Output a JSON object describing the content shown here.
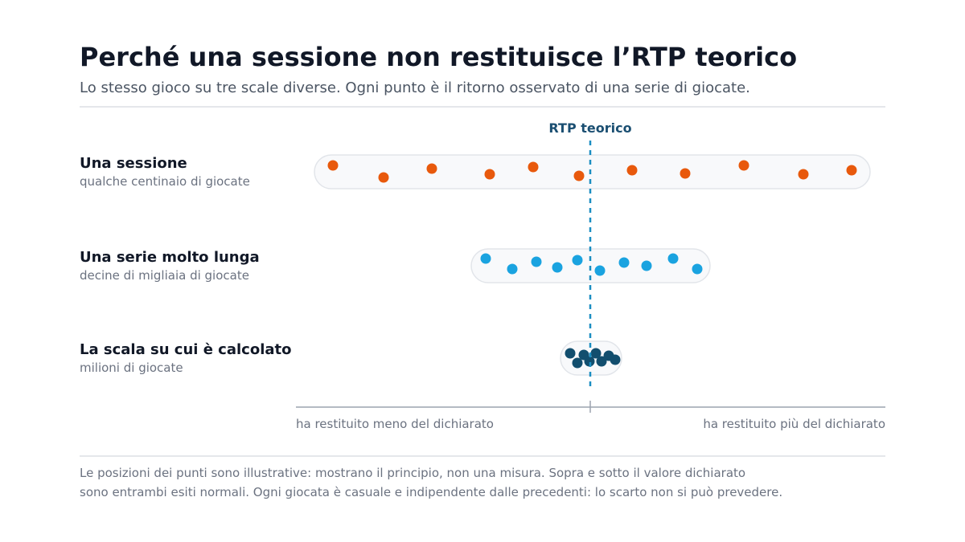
{
  "header": {
    "title": "Perché una sessione non restituisce l’RTP teorico",
    "subtitle": "Lo stesso gioco su tre scale diverse. Ogni punto è il ritorno osservato di una serie di giocate."
  },
  "marker_label": "RTP teorico",
  "rows": [
    {
      "title": "Una sessione",
      "subtitle": "qualche centinaio di giocate"
    },
    {
      "title": "Una serie molto lunga",
      "subtitle": "decine di migliaia di giocate"
    },
    {
      "title": "La scala su cui è calcolato",
      "subtitle": "milioni di giocate"
    }
  ],
  "axis": {
    "left_label": "ha restituito meno del dichiarato",
    "right_label": "ha restituito più del dichiarato"
  },
  "footnote": [
    "Le posizioni dei punti sono illustrative: mostrano il principio, non una misura. Sopra e sotto il valore dichiarato",
    "sono entrambi esiti normali. Ogni giocata è casuale e indipendente dalle precedenti: lo scarto non si può prevedere."
  ]
}
